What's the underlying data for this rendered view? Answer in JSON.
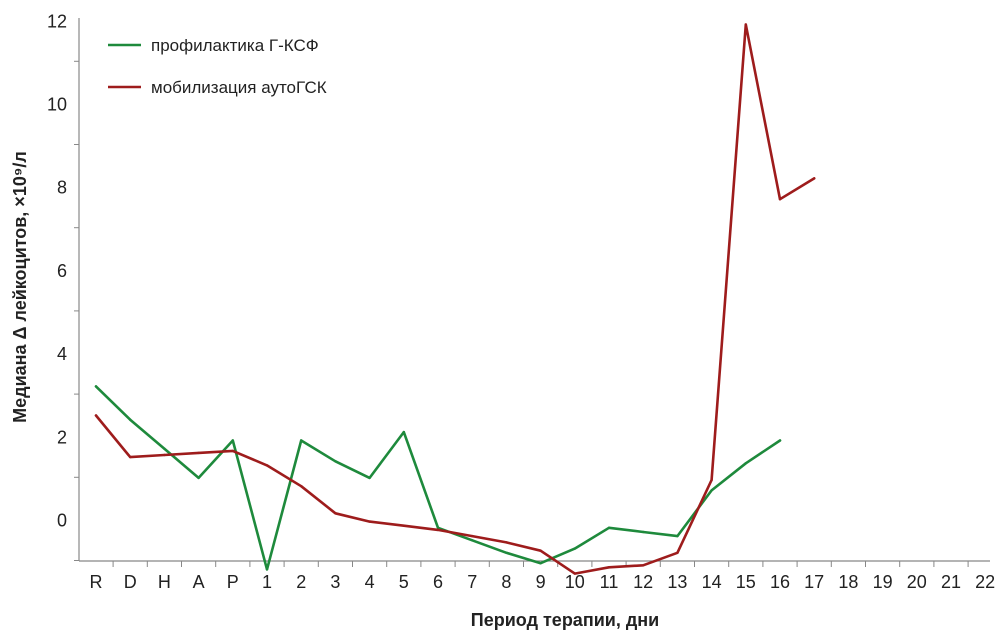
{
  "chart_data": {
    "type": "line",
    "xlabel": "Период терапии, дни",
    "ylabel": "Медиана Δ лейкоцитов, ×10⁹/л",
    "categories": [
      "R",
      "D",
      "H",
      "A",
      "P",
      "1",
      "2",
      "3",
      "4",
      "5",
      "6",
      "7",
      "8",
      "9",
      "10",
      "11",
      "12",
      "13",
      "14",
      "15",
      "16",
      "17",
      "18",
      "19",
      "20",
      "21",
      "22"
    ],
    "ylim": [
      -1,
      12
    ],
    "yticks": [
      0,
      2,
      4,
      6,
      8,
      10,
      12
    ],
    "grid": false,
    "legend": "top-left",
    "series": [
      {
        "name": "профилактика Г-КСФ",
        "color": "#1e8a3c",
        "values": [
          3.2,
          2.4,
          1.7,
          1.0,
          1.9,
          -1.2,
          1.9,
          1.4,
          1.0,
          2.1,
          -0.2,
          -0.5,
          -0.8,
          -1.05,
          -0.7,
          -0.2,
          -0.3,
          -0.4,
          0.7,
          1.35,
          1.9,
          null,
          null,
          null,
          null,
          null,
          null
        ]
      },
      {
        "name": "мобилизация аутоГСК",
        "color": "#9e1c1c",
        "values": [
          2.5,
          1.5,
          1.55,
          1.6,
          1.65,
          1.3,
          0.8,
          0.15,
          -0.05,
          -0.15,
          -0.25,
          -0.4,
          -0.55,
          -0.75,
          -1.3,
          -1.15,
          -1.1,
          -0.8,
          0.95,
          11.9,
          7.7,
          8.2,
          null,
          null,
          null,
          null,
          null
        ]
      }
    ]
  }
}
